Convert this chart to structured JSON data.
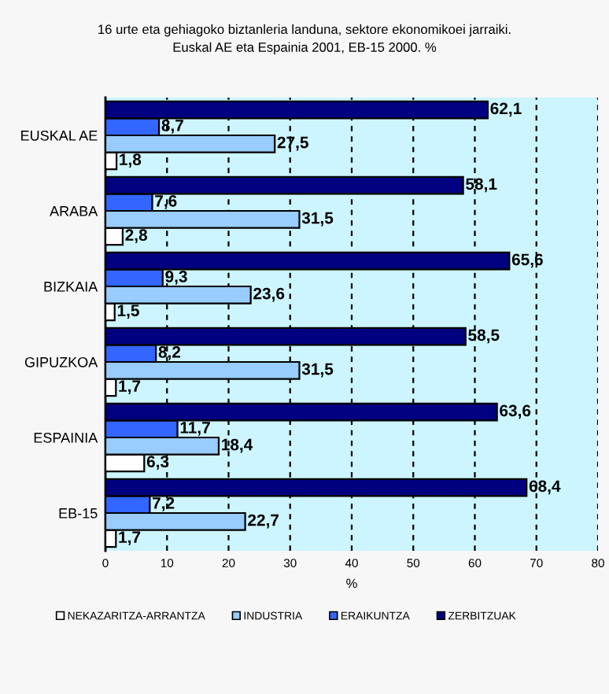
{
  "chart_data": {
    "type": "bar",
    "orientation": "horizontal",
    "title": "16 urte eta gehiagoko biztanleria landuna, sektore ekonomikoei jarraiki.\nEuskal AE eta Espainia 2001, EB-15 2000. %",
    "xlabel": "%",
    "categories": [
      "EUSKAL AE",
      "ARABA",
      "BIZKAIA",
      "GIPUZKOA",
      "ESPAINIA",
      "EB-15"
    ],
    "series": [
      {
        "name": "NEKAZARITZA-ARRANTZA",
        "color": "#ffffff",
        "values": [
          1.8,
          2.8,
          1.5,
          1.7,
          6.3,
          1.7
        ],
        "value_labels": [
          "1,8",
          "2,8",
          "1,5",
          "1,7",
          "6,3",
          "1,7"
        ]
      },
      {
        "name": "INDUSTRIA",
        "color": "#99ccff",
        "values": [
          27.5,
          31.5,
          23.6,
          31.5,
          18.4,
          22.7
        ],
        "value_labels": [
          "27,5",
          "31,5",
          "23,6",
          "31,5",
          "18,4",
          "22,7"
        ]
      },
      {
        "name": "ERAIKUNTZA",
        "color": "#3366ff",
        "values": [
          8.7,
          7.6,
          9.3,
          8.2,
          11.7,
          7.2
        ],
        "value_labels": [
          "8,7",
          "7,6",
          "9,3",
          "8,2",
          "11,7",
          "7,2"
        ]
      },
      {
        "name": "ZERBITZUAK",
        "color": "#000080",
        "values": [
          62.1,
          58.1,
          65.6,
          58.5,
          63.6,
          68.4
        ],
        "value_labels": [
          "62,1",
          "58,1",
          "65,6",
          "58,5",
          "63,6",
          "68,4"
        ]
      }
    ],
    "xlim": [
      0,
      80
    ],
    "xticks": [
      0,
      10,
      20,
      30,
      40,
      50,
      60,
      70,
      80
    ],
    "grid": "x",
    "legend": "bottom"
  }
}
